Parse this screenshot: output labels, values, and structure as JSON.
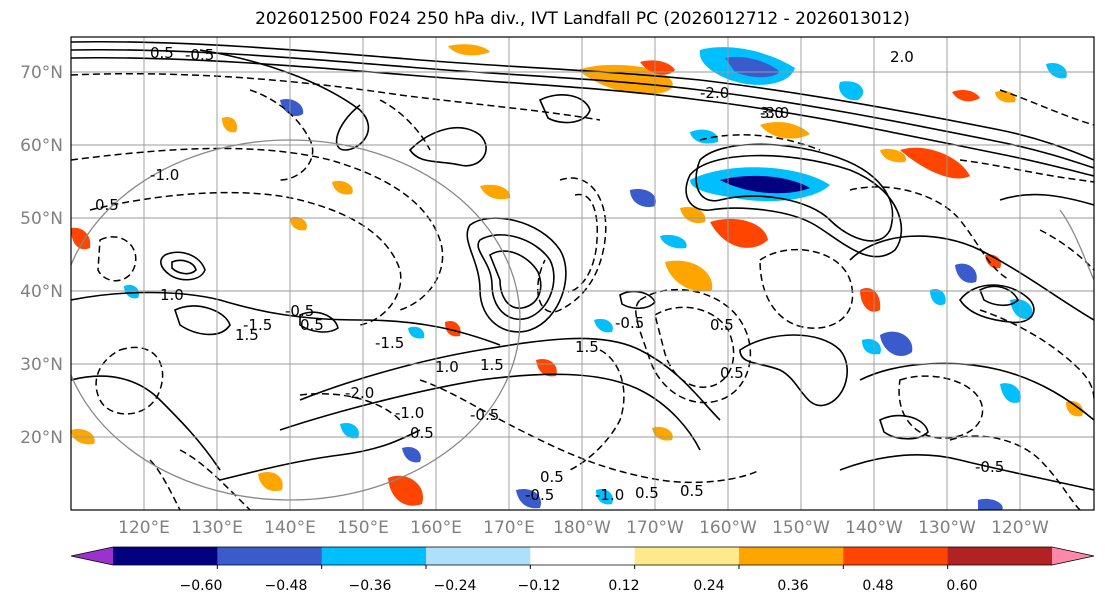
{
  "title": "2026012500 F024 250 hPa div., IVT Landfall PC (2026012712 - 2026013012)",
  "lat_labels": [
    "70°N",
    "60°N",
    "50°N",
    "40°N",
    "30°N",
    "20°N"
  ],
  "lon_labels": [
    "120°E",
    "130°E",
    "140°E",
    "150°E",
    "160°E",
    "170°E",
    "180°W",
    "170°W",
    "160°W",
    "150°W",
    "140°W",
    "130°W",
    "120°W"
  ],
  "colorbar": {
    "colors": [
      "#9933cc",
      "#000080",
      "#3a5bcc",
      "#00bfff",
      "#aee0fa",
      "#ffffff",
      "#ffe98a",
      "#ffa500",
      "#ff4500",
      "#b22222",
      "#ff88aa"
    ],
    "tick_labels": [
      "−0.60",
      "−0.48",
      "−0.36",
      "−0.24",
      "−0.12",
      "0.12",
      "0.24",
      "0.36",
      "0.48",
      "0.60"
    ]
  },
  "contour_labels": [
    "-0.5",
    "0.5",
    "-0.5",
    "0.5",
    "-1.5",
    "1.5",
    "1.0",
    "-2.0",
    "-1.0",
    "0.5",
    "-0.5",
    "1.5",
    "-0.5",
    "0.5",
    "0.5",
    "-0.5",
    "-1.0",
    "0.5",
    "3.0",
    "-3.0",
    "2.0",
    "-2.0",
    "1.0",
    "-1.0",
    "0.5",
    "-1.5",
    "1.5",
    "-0.5",
    "0.5",
    "0.5"
  ]
}
